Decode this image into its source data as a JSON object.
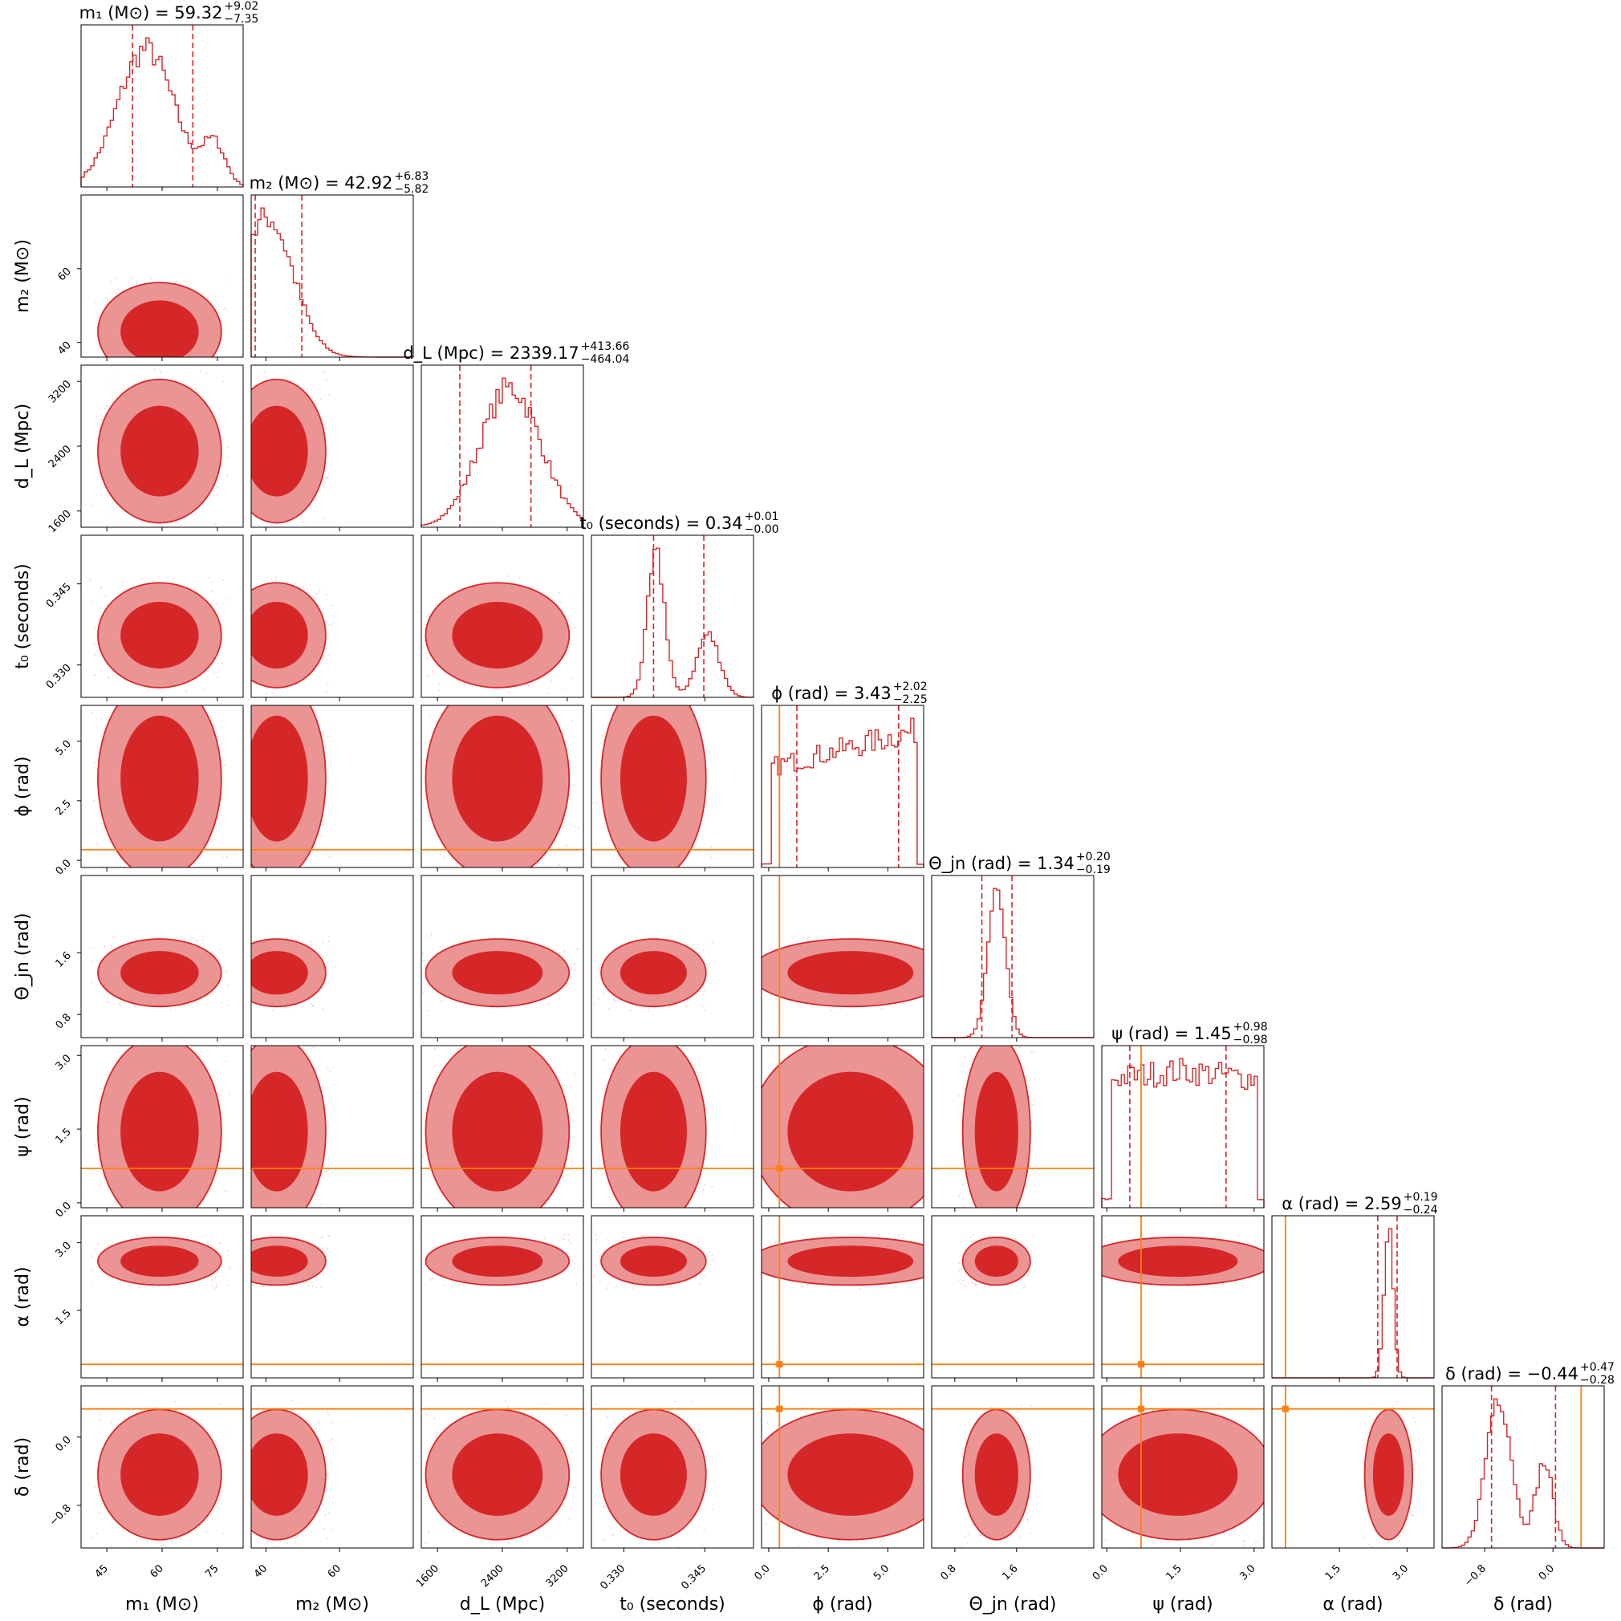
{
  "chart_data": {
    "type": "corner",
    "colors": {
      "posterior": "#d62728",
      "truth": "#ff7f0e",
      "frame": "#000000"
    },
    "contour_levels": [
      "68%",
      "95%"
    ],
    "grid": false,
    "params": [
      {
        "key": "m1",
        "label": "m₁ (M⊙)",
        "range": [
          38,
          82
        ],
        "ticks": [
          "45",
          "60",
          "75"
        ],
        "tick_values": [
          45,
          60,
          75
        ],
        "truth": null,
        "title": {
          "text": "m₁ (M⊙) = 59.32",
          "plus": "+9.02",
          "minus": "−7.35"
        },
        "median": 59.32,
        "q_lo": 51.97,
        "q_hi": 68.34
      },
      {
        "key": "m2",
        "label": "m₂ (M⊙)",
        "range": [
          36,
          80
        ],
        "ticks": [
          "40",
          "60"
        ],
        "tick_values": [
          40,
          60
        ],
        "truth": null,
        "title": {
          "text": "m₂ (M⊙) = 42.92",
          "plus": "+6.83",
          "minus": "−5.82"
        },
        "median": 42.92,
        "q_lo": 37.1,
        "q_hi": 49.75
      },
      {
        "key": "dL",
        "label": "d_L (Mpc)",
        "range": [
          1400,
          3400
        ],
        "ticks": [
          "1600",
          "2400",
          "3200"
        ],
        "tick_values": [
          1600,
          2400,
          3200
        ],
        "truth": null,
        "title": {
          "text": "d_L (Mpc) = 2339.17",
          "plus": "+413.66",
          "minus": "−464.04"
        },
        "median": 2339.17,
        "q_lo": 1875.13,
        "q_hi": 2752.83
      },
      {
        "key": "t0",
        "label": "t₀ (seconds)",
        "range": [
          0.324,
          0.354
        ],
        "ticks": [
          "0.330",
          "0.345"
        ],
        "tick_values": [
          0.33,
          0.345
        ],
        "truth": null,
        "title": {
          "text": "t₀ (seconds) = 0.34",
          "plus": "+0.01",
          "minus": "−0.00"
        },
        "median": 0.3355,
        "q_lo": 0.3355,
        "q_hi": 0.3448
      },
      {
        "key": "phi",
        "label": "ϕ (rad)",
        "range": [
          -0.3,
          6.5
        ],
        "ticks": [
          "0.0",
          "2.5",
          "5.0"
        ],
        "tick_values": [
          0,
          2.5,
          5.0
        ],
        "truth": 0.45,
        "title": {
          "text": "ϕ (rad) = 3.43",
          "plus": "+2.02",
          "minus": "−2.25"
        },
        "median": 3.43,
        "q_lo": 1.18,
        "q_hi": 5.45
      },
      {
        "key": "theta_jn",
        "label": "Θ_jn (rad)",
        "range": [
          0.5,
          2.6
        ],
        "ticks": [
          "0.8",
          "1.6"
        ],
        "tick_values": [
          0.8,
          1.6
        ],
        "truth": null,
        "title": {
          "text": "Θ_jn (rad) = 1.34",
          "plus": "+0.20",
          "minus": "−0.19"
        },
        "median": 1.34,
        "q_lo": 1.15,
        "q_hi": 1.54
      },
      {
        "key": "psi",
        "label": "ψ (rad)",
        "range": [
          -0.1,
          3.2
        ],
        "ticks": [
          "0.0",
          "1.5",
          "3.0"
        ],
        "tick_values": [
          0,
          1.5,
          3.0
        ],
        "truth": 0.7,
        "title": {
          "text": "ψ (rad) = 1.45",
          "plus": "+0.98",
          "minus": "−0.98"
        },
        "median": 1.45,
        "q_lo": 0.47,
        "q_hi": 2.43
      },
      {
        "key": "alpha",
        "label": "α (rad)",
        "range": [
          0.0,
          3.6
        ],
        "ticks": [
          "1.5",
          "3.0"
        ],
        "tick_values": [
          1.5,
          3.0
        ],
        "truth": 0.3,
        "title": {
          "text": "α (rad) = 2.59",
          "plus": "+0.19",
          "minus": "−0.24"
        },
        "median": 2.59,
        "q_lo": 2.35,
        "q_hi": 2.78
      },
      {
        "key": "delta",
        "label": "δ (rad)",
        "range": [
          -1.3,
          0.6
        ],
        "ticks": [
          "−0.8",
          "0.0"
        ],
        "tick_values": [
          -0.8,
          0.0
        ],
        "truth": 0.33,
        "title": {
          "text": "δ (rad) = −0.44",
          "plus": "+0.47",
          "minus": "−0.28"
        },
        "median": -0.44,
        "q_lo": -0.72,
        "q_hi": 0.03
      }
    ]
  }
}
